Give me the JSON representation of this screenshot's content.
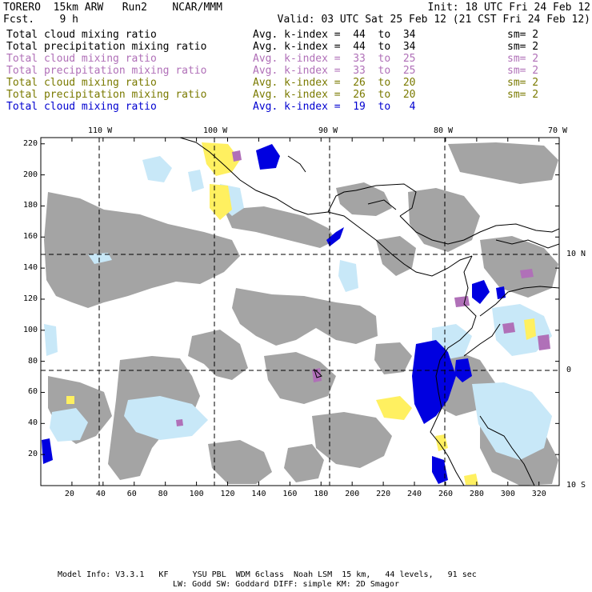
{
  "header": {
    "left_line1": "TORERO  15km ARW   Run2    NCAR/MMM",
    "left_line2": "Fcst.    9 h",
    "init": "Init: 18 UTC Fri 24 Feb 12",
    "valid": "Valid: 03 UTC Sat 25 Feb 12 (21 CST Fri 24 Feb 12)"
  },
  "legend": [
    {
      "field": "Total cloud mixing ratio",
      "kidx": "Avg. k-index =  44  to  34",
      "sm": "sm= 2",
      "color": "#000000"
    },
    {
      "field": "Total precipitation mixing ratio",
      "kidx": "Avg. k-index =  44  to  34",
      "sm": "sm= 2",
      "color": "#000000"
    },
    {
      "field": "Total cloud mixing ratio",
      "kidx": "Avg. k-index =  33  to  25",
      "sm": "sm= 2",
      "color": "#b070b8"
    },
    {
      "field": "Total precipitation mixing ratio",
      "kidx": "Avg. k-index =  33  to  25",
      "sm": "sm= 2",
      "color": "#b070b8"
    },
    {
      "field": "Total cloud mixing ratio",
      "kidx": "Avg. k-index =  26  to  20",
      "sm": "sm= 2",
      "color": "#7a7a00"
    },
    {
      "field": "Total precipitation mixing ratio",
      "kidx": "Avg. k-index =  26  to  20",
      "sm": "sm= 2",
      "color": "#7a7a00"
    },
    {
      "field": "Total cloud mixing ratio",
      "kidx": "Avg. k-index =  19  to   4",
      "sm": "",
      "color": "#0000d0"
    }
  ],
  "top_lon_labels": [
    "110 W",
    "100 W",
    "90 W",
    "80 W",
    "70 W"
  ],
  "right_lat_labels": [
    "10 N",
    "0",
    "10 S"
  ],
  "y_ticks": [
    20,
    40,
    60,
    80,
    100,
    120,
    140,
    160,
    180,
    200,
    220
  ],
  "x_ticks": [
    20,
    40,
    60,
    80,
    100,
    120,
    140,
    160,
    180,
    200,
    220,
    240,
    260,
    280,
    300,
    320
  ],
  "footer": {
    "line1": "Model Info: V3.3.1   KF     YSU PBL  WDM 6class  Noah LSM  15 km,   44 levels,   91 sec",
    "line2": "LW: Godd SW: Goddard DIFF: simple KM: 2D Smagor"
  },
  "colors": {
    "gray": "#a0a0a0",
    "light_blue": "#c8e8f8",
    "blue": "#0000e0",
    "pink": "#b070b8",
    "yellow": "#fff060"
  }
}
